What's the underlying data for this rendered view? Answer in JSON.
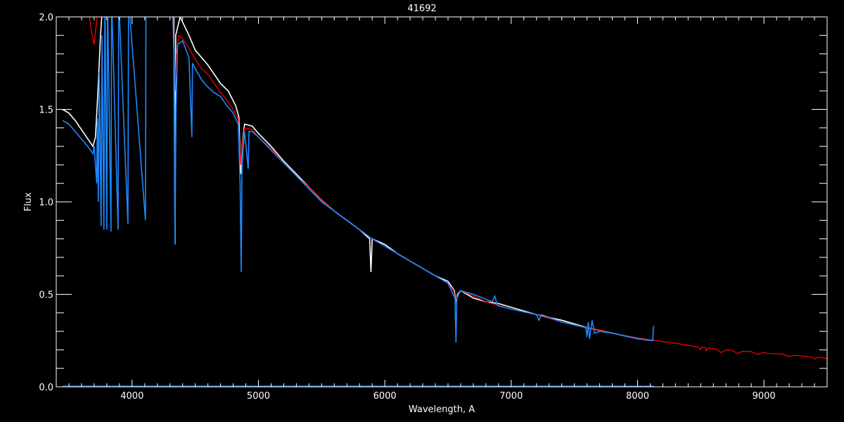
{
  "chart_data": {
    "type": "line",
    "title": "41692",
    "xlabel": "Wavelength, A",
    "ylabel": "Flux",
    "xlim": [
      3400,
      9500
    ],
    "ylim": [
      0,
      2.0
    ],
    "xticks": [
      4000,
      5000,
      6000,
      7000,
      8000,
      9000
    ],
    "xtick_labels": [
      "4000",
      "5000",
      "6000",
      "7000",
      "8000",
      "9000"
    ],
    "yticks": [
      0,
      0.5,
      1.0,
      1.5,
      2.0
    ],
    "ytick_labels": [
      "0.0",
      "0.5",
      "1.0",
      "1.5",
      "2.0"
    ],
    "x_minor_step": 100,
    "y_minor_step": 0.1,
    "grid": false,
    "legend": "none",
    "series": [
      {
        "color": "#ffffff",
        "points": [
          [
            3450,
            1.5
          ],
          [
            3500,
            1.48
          ],
          [
            3550,
            1.44
          ],
          [
            3600,
            1.39
          ],
          [
            3650,
            1.34
          ],
          [
            3690,
            1.3
          ],
          [
            3710,
            1.35
          ],
          [
            3730,
            1.6
          ],
          [
            3750,
            1.9
          ],
          [
            3770,
            2.1
          ],
          [
            4300,
            2.1
          ],
          [
            4330,
            2.0
          ],
          [
            4340,
            0.77
          ],
          [
            4345,
            1.9
          ],
          [
            4380,
            2.0
          ],
          [
            4450,
            1.9
          ],
          [
            4500,
            1.82
          ],
          [
            4600,
            1.74
          ],
          [
            4700,
            1.64
          ],
          [
            4760,
            1.6
          ],
          [
            4820,
            1.52
          ],
          [
            4845,
            1.46
          ],
          [
            4855,
            1.25
          ],
          [
            4861,
            1.15
          ],
          [
            4870,
            1.3
          ],
          [
            4890,
            1.42
          ],
          [
            4950,
            1.41
          ],
          [
            5000,
            1.37
          ],
          [
            5100,
            1.3
          ],
          [
            5200,
            1.22
          ],
          [
            5300,
            1.15
          ],
          [
            5400,
            1.08
          ],
          [
            5500,
            1.01
          ],
          [
            5600,
            0.95
          ],
          [
            5700,
            0.9
          ],
          [
            5800,
            0.85
          ],
          [
            5880,
            0.8
          ],
          [
            5890,
            0.62
          ],
          [
            5900,
            0.8
          ],
          [
            6000,
            0.77
          ],
          [
            6100,
            0.72
          ],
          [
            6200,
            0.68
          ],
          [
            6300,
            0.64
          ],
          [
            6400,
            0.6
          ],
          [
            6500,
            0.57
          ],
          [
            6550,
            0.52
          ],
          [
            6563,
            0.45
          ],
          [
            6575,
            0.5
          ],
          [
            6600,
            0.52
          ],
          [
            6700,
            0.48
          ],
          [
            6800,
            0.46
          ],
          [
            6900,
            0.45
          ],
          [
            7000,
            0.43
          ],
          [
            7200,
            0.39
          ],
          [
            7400,
            0.36
          ],
          [
            7600,
            0.32
          ],
          [
            7800,
            0.29
          ],
          [
            8000,
            0.26
          ],
          [
            8120,
            0.25
          ]
        ]
      },
      {
        "color": "#ff0000",
        "points": [
          [
            3650,
            2.05
          ],
          [
            3680,
            1.92
          ],
          [
            3700,
            1.85
          ],
          [
            3715,
            1.95
          ],
          [
            3730,
            2.05
          ],
          [
            4300,
            2.1
          ],
          [
            4320,
            2.0
          ],
          [
            4335,
            1.7
          ],
          [
            4340,
            1.6
          ],
          [
            4350,
            1.8
          ],
          [
            4370,
            1.9
          ],
          [
            4400,
            1.88
          ],
          [
            4450,
            1.83
          ],
          [
            4500,
            1.77
          ],
          [
            4550,
            1.72
          ],
          [
            4600,
            1.69
          ],
          [
            4650,
            1.64
          ],
          [
            4700,
            1.59
          ],
          [
            4750,
            1.55
          ],
          [
            4800,
            1.5
          ],
          [
            4840,
            1.45
          ],
          [
            4855,
            1.25
          ],
          [
            4861,
            1.2
          ],
          [
            4870,
            1.3
          ],
          [
            4890,
            1.4
          ],
          [
            4950,
            1.39
          ],
          [
            5000,
            1.35
          ],
          [
            5100,
            1.29
          ],
          [
            5200,
            1.21
          ],
          [
            5300,
            1.14
          ],
          [
            5400,
            1.08
          ],
          [
            5500,
            1.01
          ],
          [
            5600,
            0.95
          ],
          [
            5700,
            0.9
          ],
          [
            5800,
            0.85
          ],
          [
            5900,
            0.8
          ],
          [
            6000,
            0.76
          ],
          [
            6100,
            0.72
          ],
          [
            6200,
            0.68
          ],
          [
            6300,
            0.64
          ],
          [
            6400,
            0.6
          ],
          [
            6500,
            0.56
          ],
          [
            6545,
            0.52
          ],
          [
            6563,
            0.45
          ],
          [
            6580,
            0.5
          ],
          [
            6600,
            0.52
          ],
          [
            6700,
            0.49
          ],
          [
            6800,
            0.46
          ],
          [
            6900,
            0.44
          ],
          [
            7000,
            0.42
          ],
          [
            7200,
            0.39
          ],
          [
            7400,
            0.35
          ],
          [
            7600,
            0.32
          ],
          [
            7800,
            0.29
          ],
          [
            8000,
            0.265
          ],
          [
            8200,
            0.245
          ],
          [
            8400,
            0.225
          ],
          [
            8480,
            0.215
          ],
          [
            8498,
            0.2
          ],
          [
            8510,
            0.215
          ],
          [
            8540,
            0.21
          ],
          [
            8542,
            0.195
          ],
          [
            8560,
            0.21
          ],
          [
            8620,
            0.205
          ],
          [
            8662,
            0.185
          ],
          [
            8700,
            0.2
          ],
          [
            8750,
            0.197
          ],
          [
            8790,
            0.18
          ],
          [
            8830,
            0.192
          ],
          [
            8900,
            0.19
          ],
          [
            8950,
            0.175
          ],
          [
            8990,
            0.185
          ],
          [
            9050,
            0.18
          ],
          [
            9150,
            0.177
          ],
          [
            9190,
            0.165
          ],
          [
            9250,
            0.17
          ],
          [
            9320,
            0.165
          ],
          [
            9380,
            0.16
          ],
          [
            9400,
            0.15
          ],
          [
            9430,
            0.16
          ],
          [
            9500,
            0.152
          ]
        ]
      },
      {
        "color": "#1e88ff",
        "points": [
          [
            3450,
            1.44
          ],
          [
            3500,
            1.42
          ],
          [
            3550,
            1.38
          ],
          [
            3600,
            1.34
          ],
          [
            3650,
            1.3
          ],
          [
            3690,
            1.26
          ],
          [
            3700,
            1.3
          ],
          [
            3720,
            1.1
          ],
          [
            3725,
            1.45
          ],
          [
            3733,
            1.0
          ],
          [
            3740,
            1.7
          ],
          [
            3755,
            0.87
          ],
          [
            3762,
            1.9
          ],
          [
            3777,
            0.85
          ],
          [
            3785,
            2.1
          ],
          [
            3800,
            0.85
          ],
          [
            3806,
            2.1
          ],
          [
            3833,
            0.84
          ],
          [
            3838,
            2.1
          ],
          [
            3889,
            0.85
          ],
          [
            3894,
            2.1
          ],
          [
            3967,
            0.88
          ],
          [
            3972,
            2.1
          ],
          [
            4106,
            0.9
          ],
          [
            4110,
            2.1
          ],
          [
            4320,
            2.1
          ],
          [
            4335,
            1.7
          ],
          [
            4340,
            0.77
          ],
          [
            4348,
            1.5
          ],
          [
            4360,
            1.85
          ],
          [
            4400,
            1.87
          ],
          [
            4450,
            1.78
          ],
          [
            4473,
            1.35
          ],
          [
            4478,
            1.75
          ],
          [
            4500,
            1.72
          ],
          [
            4550,
            1.66
          ],
          [
            4600,
            1.62
          ],
          [
            4650,
            1.59
          ],
          [
            4700,
            1.57
          ],
          [
            4750,
            1.52
          ],
          [
            4800,
            1.48
          ],
          [
            4840,
            1.42
          ],
          [
            4855,
            1.1
          ],
          [
            4863,
            0.62
          ],
          [
            4870,
            1.2
          ],
          [
            4890,
            1.38
          ],
          [
            4919,
            1.18
          ],
          [
            4925,
            1.38
          ],
          [
            4950,
            1.38
          ],
          [
            5000,
            1.35
          ],
          [
            5100,
            1.28
          ],
          [
            5200,
            1.21
          ],
          [
            5300,
            1.14
          ],
          [
            5400,
            1.07
          ],
          [
            5500,
            1.0
          ],
          [
            5600,
            0.95
          ],
          [
            5700,
            0.9
          ],
          [
            5800,
            0.85
          ],
          [
            5900,
            0.8
          ],
          [
            6000,
            0.76
          ],
          [
            6100,
            0.72
          ],
          [
            6200,
            0.68
          ],
          [
            6300,
            0.64
          ],
          [
            6400,
            0.6
          ],
          [
            6500,
            0.56
          ],
          [
            6555,
            0.48
          ],
          [
            6563,
            0.24
          ],
          [
            6570,
            0.48
          ],
          [
            6600,
            0.52
          ],
          [
            6700,
            0.5
          ],
          [
            6850,
            0.46
          ],
          [
            6870,
            0.49
          ],
          [
            6890,
            0.44
          ],
          [
            7000,
            0.42
          ],
          [
            7200,
            0.39
          ],
          [
            7220,
            0.36
          ],
          [
            7240,
            0.39
          ],
          [
            7400,
            0.35
          ],
          [
            7590,
            0.32
          ],
          [
            7600,
            0.27
          ],
          [
            7610,
            0.35
          ],
          [
            7620,
            0.26
          ],
          [
            7640,
            0.36
          ],
          [
            7660,
            0.29
          ],
          [
            7700,
            0.3
          ],
          [
            7800,
            0.29
          ],
          [
            8000,
            0.26
          ],
          [
            8120,
            0.25
          ],
          [
            8125,
            0.32
          ],
          [
            8130,
            0.33
          ]
        ]
      },
      {
        "color": "#1e88ff",
        "points": [
          [
            3450,
            0.003
          ],
          [
            8130,
            0.003
          ]
        ]
      }
    ]
  }
}
